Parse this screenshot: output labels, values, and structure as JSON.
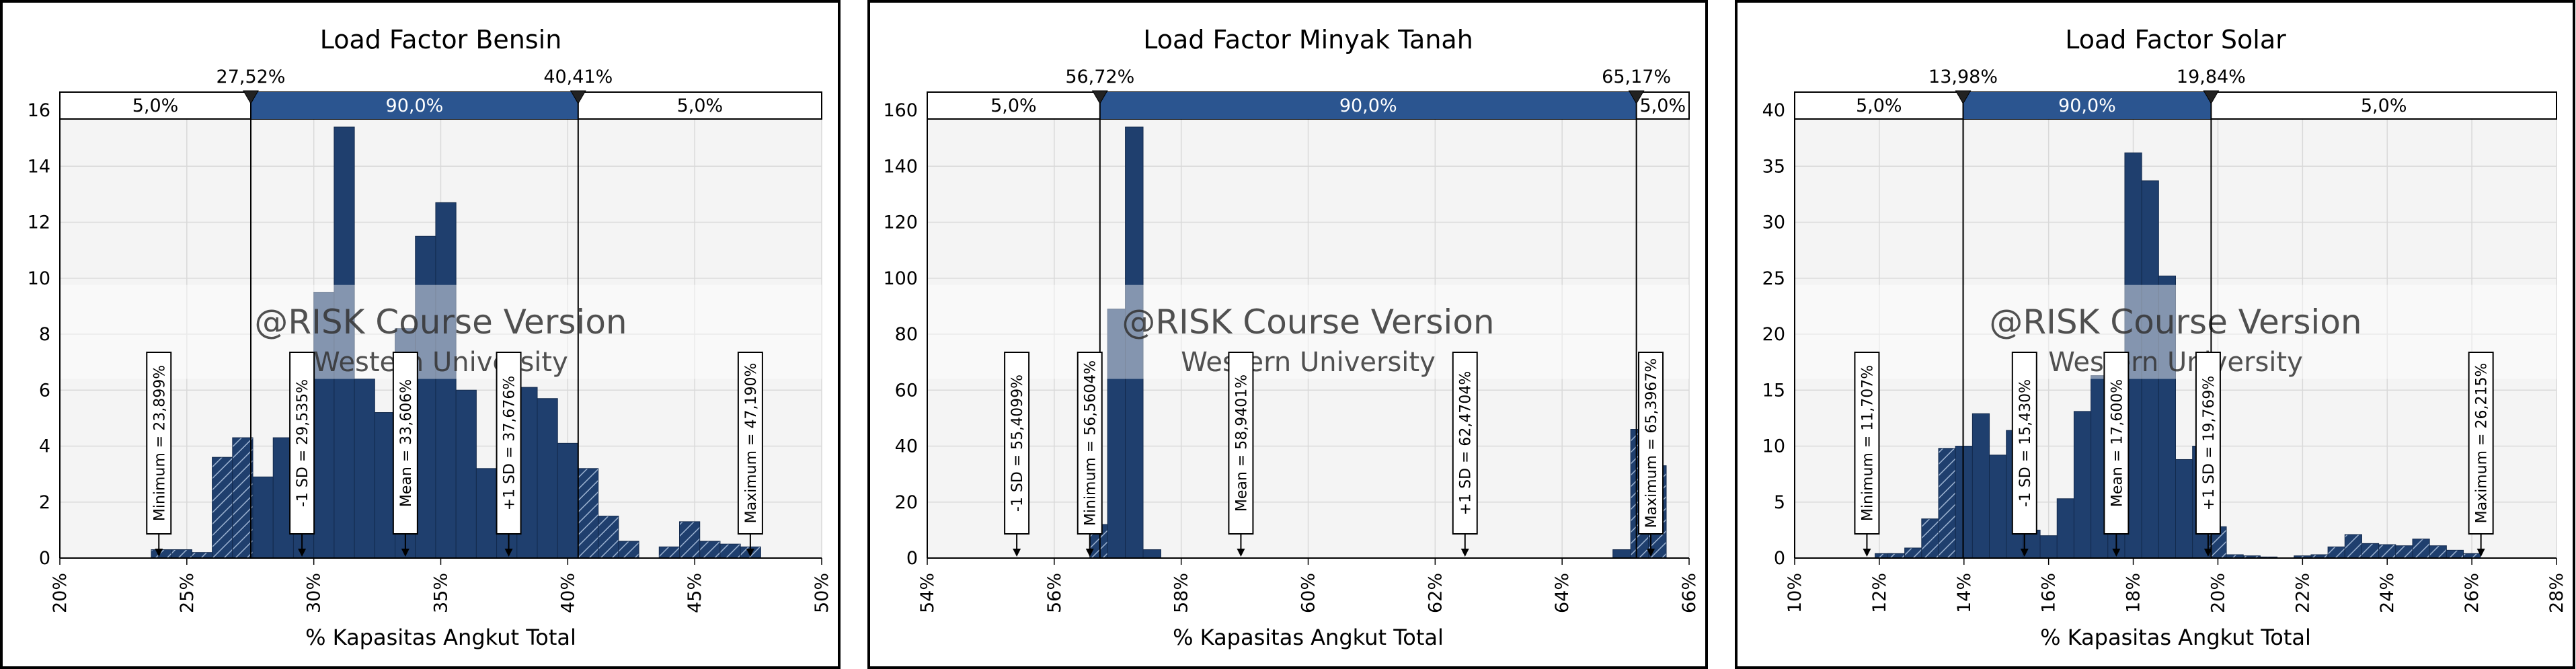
{
  "watermark": {
    "line1": "@RISK Course Version",
    "line2": "Western University"
  },
  "chart_data": [
    {
      "type": "bar",
      "title": "Load Factor Bensin",
      "xlabel": "% Kapasitas Angkut Total",
      "ylabel": "",
      "xlim": [
        20,
        50
      ],
      "ylim": [
        0,
        16
      ],
      "xticks": [
        "20%",
        "25%",
        "30%",
        "35%",
        "40%",
        "45%",
        "50%"
      ],
      "xtick_values": [
        20,
        25,
        30,
        35,
        40,
        45,
        50
      ],
      "yticks": [
        0,
        2,
        4,
        6,
        8,
        10,
        12,
        14,
        16
      ],
      "delimiters": {
        "left": 27.52,
        "right": 40.41,
        "left_label": "27,52%",
        "right_label": "40,41%"
      },
      "bands": [
        "5,0%",
        "90,0%",
        "5,0%"
      ],
      "bins": [
        {
          "x": 23.6,
          "y": 0.3
        },
        {
          "x": 24.4,
          "y": 0.3
        },
        {
          "x": 25.2,
          "y": 0.2
        },
        {
          "x": 26.0,
          "y": 3.6
        },
        {
          "x": 26.8,
          "y": 4.3
        },
        {
          "x": 27.6,
          "y": 2.9
        },
        {
          "x": 28.4,
          "y": 4.3
        },
        {
          "x": 29.2,
          "y": 5.3
        },
        {
          "x": 30.0,
          "y": 9.5
        },
        {
          "x": 30.8,
          "y": 15.4
        },
        {
          "x": 31.6,
          "y": 6.4
        },
        {
          "x": 32.4,
          "y": 5.2
        },
        {
          "x": 33.2,
          "y": 8.2
        },
        {
          "x": 34.0,
          "y": 11.5
        },
        {
          "x": 34.8,
          "y": 12.7
        },
        {
          "x": 35.6,
          "y": 6.0
        },
        {
          "x": 36.4,
          "y": 3.2
        },
        {
          "x": 37.2,
          "y": 2.3
        },
        {
          "x": 38.0,
          "y": 6.1
        },
        {
          "x": 38.8,
          "y": 5.7
        },
        {
          "x": 39.6,
          "y": 4.1
        },
        {
          "x": 40.4,
          "y": 3.2
        },
        {
          "x": 41.2,
          "y": 1.5
        },
        {
          "x": 42.0,
          "y": 0.6
        },
        {
          "x": 42.8,
          "y": 0.0
        },
        {
          "x": 43.6,
          "y": 0.4
        },
        {
          "x": 44.4,
          "y": 1.3
        },
        {
          "x": 45.2,
          "y": 0.6
        },
        {
          "x": 46.0,
          "y": 0.5
        },
        {
          "x": 46.8,
          "y": 0.4
        }
      ],
      "bin_width": 0.8,
      "markers": [
        {
          "label": "Minimum = 23,899%",
          "x": 23.899
        },
        {
          "label": "-1 SD = 29,535%",
          "x": 29.535
        },
        {
          "label": "Mean = 33,606%",
          "x": 33.606
        },
        {
          "label": "+1 SD = 37,676%",
          "x": 37.676
        },
        {
          "label": "Maximum = 47,190%",
          "x": 47.19
        }
      ]
    },
    {
      "type": "bar",
      "title": "Load Factor Minyak Tanah",
      "xlabel": "% Kapasitas Angkut Total",
      "ylabel": "",
      "xlim": [
        54,
        66
      ],
      "ylim": [
        0,
        160
      ],
      "xticks": [
        "54%",
        "56%",
        "58%",
        "60%",
        "62%",
        "64%",
        "66%"
      ],
      "xtick_values": [
        54,
        56,
        58,
        60,
        62,
        64,
        66
      ],
      "yticks": [
        0,
        20,
        40,
        60,
        80,
        100,
        120,
        140,
        160
      ],
      "delimiters": {
        "left": 56.72,
        "right": 65.17,
        "left_label": "56,72%",
        "right_label": "65,17%"
      },
      "bands": [
        "5,0%",
        "90,0%",
        "5,0%"
      ],
      "bins": [
        {
          "x": 56.56,
          "y": 12
        },
        {
          "x": 56.84,
          "y": 89
        },
        {
          "x": 57.12,
          "y": 154
        },
        {
          "x": 57.4,
          "y": 3
        },
        {
          "x": 64.8,
          "y": 3
        },
        {
          "x": 65.08,
          "y": 46
        },
        {
          "x": 65.36,
          "y": 33
        }
      ],
      "bin_width": 0.28,
      "markers": [
        {
          "label": "-1 SD = 55,4099%",
          "x": 55.4099
        },
        {
          "label": "Minimum = 56,5604%",
          "x": 56.5604
        },
        {
          "label": "Mean = 58,9401%",
          "x": 58.9401
        },
        {
          "label": "+1 SD = 62,4704%",
          "x": 62.4704
        },
        {
          "label": "Maximum = 65,3967%",
          "x": 65.3967
        }
      ]
    },
    {
      "type": "bar",
      "title": "Load Factor Solar",
      "xlabel": "% Kapasitas Angkut Total",
      "ylabel": "",
      "xlim": [
        10,
        28
      ],
      "ylim": [
        0,
        40
      ],
      "xticks": [
        "10%",
        "12%",
        "14%",
        "16%",
        "18%",
        "20%",
        "22%",
        "24%",
        "26%",
        "28%"
      ],
      "xtick_values": [
        10,
        12,
        14,
        16,
        18,
        20,
        22,
        24,
        26,
        28
      ],
      "yticks": [
        0,
        5,
        10,
        15,
        20,
        25,
        30,
        35,
        40
      ],
      "delimiters": {
        "left": 13.98,
        "right": 19.84,
        "left_label": "13,98%",
        "right_label": "19,84%"
      },
      "bands": [
        "5,0%",
        "90,0%",
        "5,0%"
      ],
      "bins": [
        {
          "x": 11.9,
          "y": 0.4
        },
        {
          "x": 12.2,
          "y": 0.4
        },
        {
          "x": 12.6,
          "y": 0.9
        },
        {
          "x": 13.0,
          "y": 3.5
        },
        {
          "x": 13.4,
          "y": 9.8
        },
        {
          "x": 13.8,
          "y": 10.0
        },
        {
          "x": 14.2,
          "y": 12.9
        },
        {
          "x": 14.6,
          "y": 9.2
        },
        {
          "x": 15.0,
          "y": 11.4
        },
        {
          "x": 15.4,
          "y": 2.5
        },
        {
          "x": 15.8,
          "y": 2.0
        },
        {
          "x": 16.2,
          "y": 5.3
        },
        {
          "x": 16.6,
          "y": 13.1
        },
        {
          "x": 17.0,
          "y": 16.3
        },
        {
          "x": 17.4,
          "y": 16.9
        },
        {
          "x": 17.8,
          "y": 36.2
        },
        {
          "x": 18.2,
          "y": 33.7
        },
        {
          "x": 18.6,
          "y": 25.2
        },
        {
          "x": 19.0,
          "y": 8.8
        },
        {
          "x": 19.4,
          "y": 10.0
        },
        {
          "x": 19.8,
          "y": 2.8
        },
        {
          "x": 20.2,
          "y": 0.3
        },
        {
          "x": 20.6,
          "y": 0.2
        },
        {
          "x": 21.0,
          "y": 0.1
        },
        {
          "x": 21.8,
          "y": 0.2
        },
        {
          "x": 22.2,
          "y": 0.3
        },
        {
          "x": 22.6,
          "y": 1.0
        },
        {
          "x": 23.0,
          "y": 2.1
        },
        {
          "x": 23.4,
          "y": 1.3
        },
        {
          "x": 23.8,
          "y": 1.2
        },
        {
          "x": 24.2,
          "y": 1.1
        },
        {
          "x": 24.6,
          "y": 1.7
        },
        {
          "x": 25.0,
          "y": 1.1
        },
        {
          "x": 25.4,
          "y": 0.7
        },
        {
          "x": 25.8,
          "y": 0.4
        }
      ],
      "bin_width": 0.4,
      "markers": [
        {
          "label": "Minimum = 11,707%",
          "x": 11.707
        },
        {
          "label": "-1 SD = 15,430%",
          "x": 15.43
        },
        {
          "label": "Mean = 17,600%",
          "x": 17.6
        },
        {
          "label": "+1 SD = 19,769%",
          "x": 19.769
        },
        {
          "label": "Maximum = 26,215%",
          "x": 26.215
        }
      ]
    }
  ],
  "colors": {
    "bar_fill": "#1f3f6e",
    "bar_edge": "#132a4d",
    "band_fill": "#2b5590",
    "grid": "#d9d9d9",
    "plot_bg": "#f4f4f4"
  }
}
